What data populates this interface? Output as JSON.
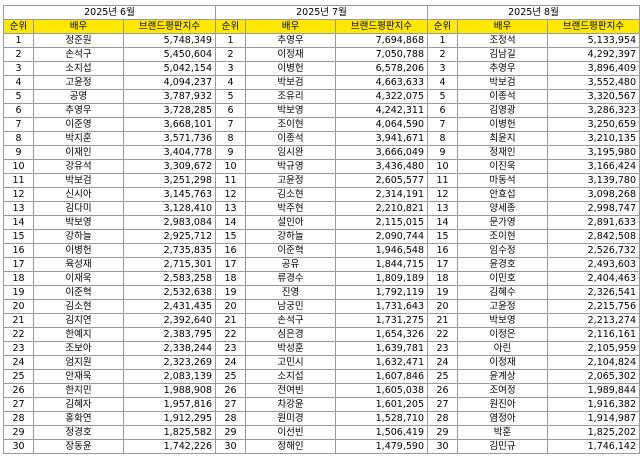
{
  "headers": {
    "rank": "순위",
    "name": "배우",
    "score": "브랜드평판지수"
  },
  "months": [
    {
      "title": "2025년 6월",
      "rows": [
        [
          "1",
          "정준원",
          "5,748,349"
        ],
        [
          "2",
          "손석구",
          "5,450,604"
        ],
        [
          "3",
          "소지섭",
          "5,042,154"
        ],
        [
          "4",
          "고윤정",
          "4,094,237"
        ],
        [
          "5",
          "공명",
          "3,787,932"
        ],
        [
          "6",
          "추영우",
          "3,728,285"
        ],
        [
          "7",
          "이준영",
          "3,668,101"
        ],
        [
          "8",
          "박지훈",
          "3,571,736"
        ],
        [
          "9",
          "이재인",
          "3,404,778"
        ],
        [
          "10",
          "강유석",
          "3,309,672"
        ],
        [
          "11",
          "박보검",
          "3,251,298"
        ],
        [
          "12",
          "신시아",
          "3,145,763"
        ],
        [
          "13",
          "김다미",
          "3,128,410"
        ],
        [
          "14",
          "박보영",
          "2,983,084"
        ],
        [
          "15",
          "강하늘",
          "2,925,712"
        ],
        [
          "16",
          "이병헌",
          "2,735,835"
        ],
        [
          "17",
          "육성재",
          "2,715,301"
        ],
        [
          "18",
          "이재욱",
          "2,583,258"
        ],
        [
          "19",
          "이준혁",
          "2,532,638"
        ],
        [
          "20",
          "김소현",
          "2,431,435"
        ],
        [
          "21",
          "김지연",
          "2,392,640"
        ],
        [
          "22",
          "한예지",
          "2,383,795"
        ],
        [
          "23",
          "조보아",
          "2,338,244"
        ],
        [
          "24",
          "엄지원",
          "2,323,269"
        ],
        [
          "25",
          "안재욱",
          "2,083,139"
        ],
        [
          "26",
          "한지민",
          "1,988,908"
        ],
        [
          "27",
          "김혜자",
          "1,957,816"
        ],
        [
          "28",
          "홍화연",
          "1,912,295"
        ],
        [
          "29",
          "정경호",
          "1,825,582"
        ],
        [
          "30",
          "장동윤",
          "1,742,226"
        ]
      ]
    },
    {
      "title": "2025년 7월",
      "rows": [
        [
          "1",
          "추영우",
          "7,694,868"
        ],
        [
          "2",
          "이정재",
          "7,050,788"
        ],
        [
          "3",
          "이병헌",
          "6,578,206"
        ],
        [
          "4",
          "박보검",
          "4,663,633"
        ],
        [
          "5",
          "조유리",
          "4,322,075"
        ],
        [
          "6",
          "박보영",
          "4,242,311"
        ],
        [
          "7",
          "조이현",
          "4,064,590"
        ],
        [
          "8",
          "이종석",
          "3,941,671"
        ],
        [
          "9",
          "임시완",
          "3,666,049"
        ],
        [
          "10",
          "박규영",
          "3,436,480"
        ],
        [
          "11",
          "고윤정",
          "2,605,577"
        ],
        [
          "12",
          "김소현",
          "2,314,191"
        ],
        [
          "13",
          "박주현",
          "2,210,821"
        ],
        [
          "14",
          "설인아",
          "2,115,015"
        ],
        [
          "15",
          "강하늘",
          "2,090,744"
        ],
        [
          "16",
          "이준혁",
          "1,946,548"
        ],
        [
          "17",
          "공유",
          "1,844,715"
        ],
        [
          "18",
          "류경수",
          "1,809,189"
        ],
        [
          "19",
          "진영",
          "1,792,119"
        ],
        [
          "20",
          "남궁민",
          "1,731,643"
        ],
        [
          "21",
          "손석구",
          "1,731,275"
        ],
        [
          "22",
          "심은경",
          "1,654,326"
        ],
        [
          "23",
          "박성훈",
          "1,639,781"
        ],
        [
          "24",
          "고민시",
          "1,632,471"
        ],
        [
          "25",
          "소지섭",
          "1,607,846"
        ],
        [
          "26",
          "전여빈",
          "1,605,038"
        ],
        [
          "27",
          "차강윤",
          "1,601,205"
        ],
        [
          "28",
          "원미경",
          "1,528,710"
        ],
        [
          "29",
          "이선빈",
          "1,506,419"
        ],
        [
          "30",
          "정해인",
          "1,479,590"
        ]
      ]
    },
    {
      "title": "2025년 8월",
      "rows": [
        [
          "1",
          "조정석",
          "5,133,954"
        ],
        [
          "2",
          "김남길",
          "4,292,397"
        ],
        [
          "3",
          "추영우",
          "3,896,409"
        ],
        [
          "4",
          "박보검",
          "3,552,480"
        ],
        [
          "5",
          "이종석",
          "3,320,567"
        ],
        [
          "6",
          "김영광",
          "3,286,323"
        ],
        [
          "7",
          "이병헌",
          "3,250,659"
        ],
        [
          "8",
          "최윤지",
          "3,210,135"
        ],
        [
          "9",
          "정재인",
          "3,195,980"
        ],
        [
          "10",
          "이진욱",
          "3,166,424"
        ],
        [
          "11",
          "마동석",
          "3,139,780"
        ],
        [
          "12",
          "안효섭",
          "3,098,268"
        ],
        [
          "13",
          "양세종",
          "2,998,747"
        ],
        [
          "14",
          "문가영",
          "2,891,633"
        ],
        [
          "15",
          "조이현",
          "2,842,508"
        ],
        [
          "16",
          "임수정",
          "2,526,732"
        ],
        [
          "17",
          "윤경호",
          "2,493,603"
        ],
        [
          "18",
          "이민호",
          "2,404,463"
        ],
        [
          "19",
          "김혜수",
          "2,326,541"
        ],
        [
          "20",
          "고윤정",
          "2,215,756"
        ],
        [
          "21",
          "박보영",
          "2,213,274"
        ],
        [
          "22",
          "이정은",
          "2,116,161"
        ],
        [
          "23",
          "아린",
          "2,105,959"
        ],
        [
          "24",
          "이정재",
          "2,104,824"
        ],
        [
          "25",
          "윤계상",
          "2,065,302"
        ],
        [
          "26",
          "조여정",
          "1,989,844"
        ],
        [
          "27",
          "원진아",
          "1,916,382"
        ],
        [
          "28",
          "염정아",
          "1,914,987"
        ],
        [
          "29",
          "박훈",
          "1,825,202"
        ],
        [
          "30",
          "김민규",
          "1,746,142"
        ]
      ]
    }
  ]
}
